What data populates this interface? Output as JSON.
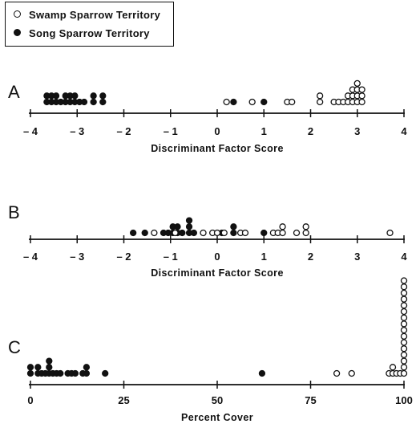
{
  "legend": [
    {
      "label": "Swamp Sparrow Territory",
      "marker": "open"
    },
    {
      "label": "Song Sparrow Territory",
      "marker": "filled"
    }
  ],
  "chart_data": [
    {
      "panel": "A",
      "type": "scatter",
      "xlabel": "Discriminant Factor Score",
      "xlim": [
        -4,
        4
      ],
      "xticks": [
        -4,
        -3,
        -2,
        -1,
        0,
        1,
        2,
        3,
        4
      ],
      "xtick_labels": [
        "– 4",
        "– 3",
        "– 2",
        "– 1",
        "0",
        "1",
        "2",
        "3",
        "4"
      ],
      "series": [
        {
          "name": "Song Sparrow Territory",
          "marker": "filled",
          "points": [
            {
              "x": -3.65,
              "n": 2
            },
            {
              "x": -3.55,
              "n": 2
            },
            {
              "x": -3.45,
              "n": 2
            },
            {
              "x": -3.35,
              "n": 1
            },
            {
              "x": -3.25,
              "n": 2
            },
            {
              "x": -3.15,
              "n": 2
            },
            {
              "x": -3.05,
              "n": 2
            },
            {
              "x": -2.95,
              "n": 1
            },
            {
              "x": -2.85,
              "n": 1
            },
            {
              "x": -2.65,
              "n": 2
            },
            {
              "x": -2.45,
              "n": 2
            },
            {
              "x": 0.35,
              "n": 1
            },
            {
              "x": 1.0,
              "n": 1
            }
          ]
        },
        {
          "name": "Swamp Sparrow Territory",
          "marker": "open",
          "points": [
            {
              "x": 0.2,
              "n": 1
            },
            {
              "x": 0.75,
              "n": 1
            },
            {
              "x": 1.5,
              "n": 1
            },
            {
              "x": 1.6,
              "n": 1
            },
            {
              "x": 2.2,
              "n": 2
            },
            {
              "x": 2.5,
              "n": 1
            },
            {
              "x": 2.6,
              "n": 1
            },
            {
              "x": 2.7,
              "n": 1
            },
            {
              "x": 2.8,
              "n": 2
            },
            {
              "x": 2.9,
              "n": 3
            },
            {
              "x": 3.0,
              "n": 4
            },
            {
              "x": 3.1,
              "n": 3
            }
          ]
        }
      ]
    },
    {
      "panel": "B",
      "type": "scatter",
      "xlabel": "Discriminant Factor Score",
      "xlim": [
        -4,
        4
      ],
      "xticks": [
        -4,
        -3,
        -2,
        -1,
        0,
        1,
        2,
        3,
        4
      ],
      "xtick_labels": [
        "– 4",
        "– 3",
        "– 2",
        "– 1",
        "0",
        "1",
        "2",
        "3",
        "4"
      ],
      "series": [
        {
          "name": "Song Sparrow Territory",
          "marker": "filled",
          "points": [
            {
              "x": -1.8,
              "n": 1
            },
            {
              "x": -1.55,
              "n": 1
            },
            {
              "x": -1.15,
              "n": 1
            },
            {
              "x": -1.05,
              "n": 1
            },
            {
              "x": -0.95,
              "n": 2
            },
            {
              "x": -0.85,
              "n": 2
            },
            {
              "x": -0.75,
              "n": 1
            },
            {
              "x": -0.6,
              "n": 3
            },
            {
              "x": -0.5,
              "n": 1
            },
            {
              "x": 0.1,
              "n": 1
            },
            {
              "x": 0.35,
              "n": 2
            },
            {
              "x": 1.0,
              "n": 1
            }
          ]
        },
        {
          "name": "Swamp Sparrow Territory",
          "marker": "open",
          "points": [
            {
              "x": -1.35,
              "n": 1
            },
            {
              "x": -0.9,
              "n": 1
            },
            {
              "x": -0.3,
              "n": 1
            },
            {
              "x": -0.1,
              "n": 1
            },
            {
              "x": 0.0,
              "n": 1
            },
            {
              "x": 0.15,
              "n": 1
            },
            {
              "x": 0.5,
              "n": 1
            },
            {
              "x": 0.6,
              "n": 1
            },
            {
              "x": 1.2,
              "n": 1
            },
            {
              "x": 1.3,
              "n": 1
            },
            {
              "x": 1.4,
              "n": 2
            },
            {
              "x": 1.7,
              "n": 1
            },
            {
              "x": 1.9,
              "n": 2
            },
            {
              "x": 3.7,
              "n": 1
            }
          ]
        }
      ]
    },
    {
      "panel": "C",
      "type": "scatter",
      "xlabel": "Percent Cover",
      "xlim": [
        0,
        100
      ],
      "xticks": [
        0,
        25,
        50,
        75,
        100
      ],
      "xtick_labels": [
        "0",
        "25",
        "50",
        "75",
        "100"
      ],
      "series": [
        {
          "name": "Song Sparrow Territory",
          "marker": "filled",
          "points": [
            {
              "x": 0,
              "n": 2
            },
            {
              "x": 2,
              "n": 2
            },
            {
              "x": 3,
              "n": 1
            },
            {
              "x": 4,
              "n": 1
            },
            {
              "x": 5,
              "n": 3
            },
            {
              "x": 6,
              "n": 1
            },
            {
              "x": 7,
              "n": 1
            },
            {
              "x": 8,
              "n": 1
            },
            {
              "x": 10,
              "n": 1
            },
            {
              "x": 11,
              "n": 1
            },
            {
              "x": 12,
              "n": 1
            },
            {
              "x": 14,
              "n": 1
            },
            {
              "x": 15,
              "n": 2
            },
            {
              "x": 20,
              "n": 1
            },
            {
              "x": 62,
              "n": 1
            }
          ]
        },
        {
          "name": "Swamp Sparrow Territory",
          "marker": "open",
          "points": [
            {
              "x": 82,
              "n": 1
            },
            {
              "x": 86,
              "n": 1
            },
            {
              "x": 96,
              "n": 1
            },
            {
              "x": 97,
              "n": 2
            },
            {
              "x": 98,
              "n": 1
            },
            {
              "x": 99,
              "n": 1
            },
            {
              "x": 100,
              "n": 16
            }
          ]
        }
      ]
    }
  ]
}
